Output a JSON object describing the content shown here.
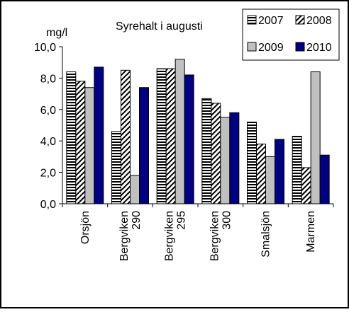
{
  "chart_data": {
    "type": "bar",
    "title": "Syrehalt i augusti",
    "ylabel": "mg/l",
    "xlabel": "",
    "ylim": [
      0,
      10
    ],
    "yticks": [
      "0,0",
      "2,0",
      "4,0",
      "6,0",
      "8,0",
      "10,0"
    ],
    "categories": [
      [
        "Orsjön"
      ],
      [
        "Bergviken",
        "290"
      ],
      [
        "Bergviken",
        "295"
      ],
      [
        "Bergviken",
        "300"
      ],
      [
        "Smalsjön"
      ],
      [
        "Marmen"
      ]
    ],
    "series": [
      {
        "name": "2007",
        "fill": "stripe-h",
        "values": [
          8.4,
          4.6,
          8.6,
          6.7,
          5.2,
          4.3
        ]
      },
      {
        "name": "2008",
        "fill": "stripe-d",
        "values": [
          7.8,
          8.5,
          8.6,
          6.4,
          3.8,
          2.3
        ]
      },
      {
        "name": "2009",
        "fill": "#c0c0c0",
        "values": [
          7.4,
          1.8,
          9.2,
          5.5,
          3.0,
          8.4
        ]
      },
      {
        "name": "2010",
        "fill": "#000080",
        "values": [
          8.7,
          7.4,
          8.2,
          5.8,
          4.1,
          3.1
        ]
      }
    ],
    "legend": "top-right",
    "grid": false
  }
}
